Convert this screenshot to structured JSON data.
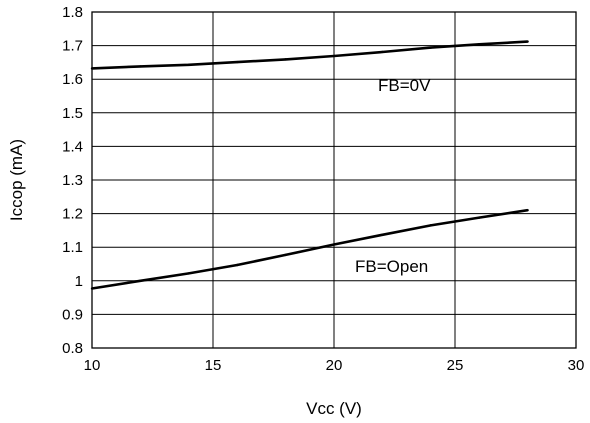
{
  "chart_data": {
    "type": "line",
    "xlabel": "Vcc (V)",
    "ylabel": "Iccop (mA)",
    "xlim": [
      10,
      30
    ],
    "ylim": [
      0.8,
      1.8
    ],
    "x_ticks": [
      "10",
      "15",
      "20",
      "25",
      "30"
    ],
    "y_ticks": [
      "0.8",
      "0.9",
      "1",
      "1.1",
      "1.2",
      "1.3",
      "1.4",
      "1.5",
      "1.6",
      "1.7",
      "1.8"
    ],
    "grid": true,
    "series": [
      {
        "name": "FB=0V",
        "x": [
          10,
          12,
          14,
          16,
          18,
          20,
          22,
          24,
          26,
          28
        ],
        "y": [
          1.632,
          1.638,
          1.643,
          1.651,
          1.659,
          1.669,
          1.681,
          1.694,
          1.704,
          1.712
        ]
      },
      {
        "name": "FB=Open",
        "x": [
          10,
          12,
          14,
          16,
          18,
          20,
          22,
          24,
          26,
          28
        ],
        "y": [
          0.977,
          1.0,
          1.022,
          1.047,
          1.077,
          1.108,
          1.137,
          1.165,
          1.188,
          1.21
        ]
      }
    ]
  }
}
